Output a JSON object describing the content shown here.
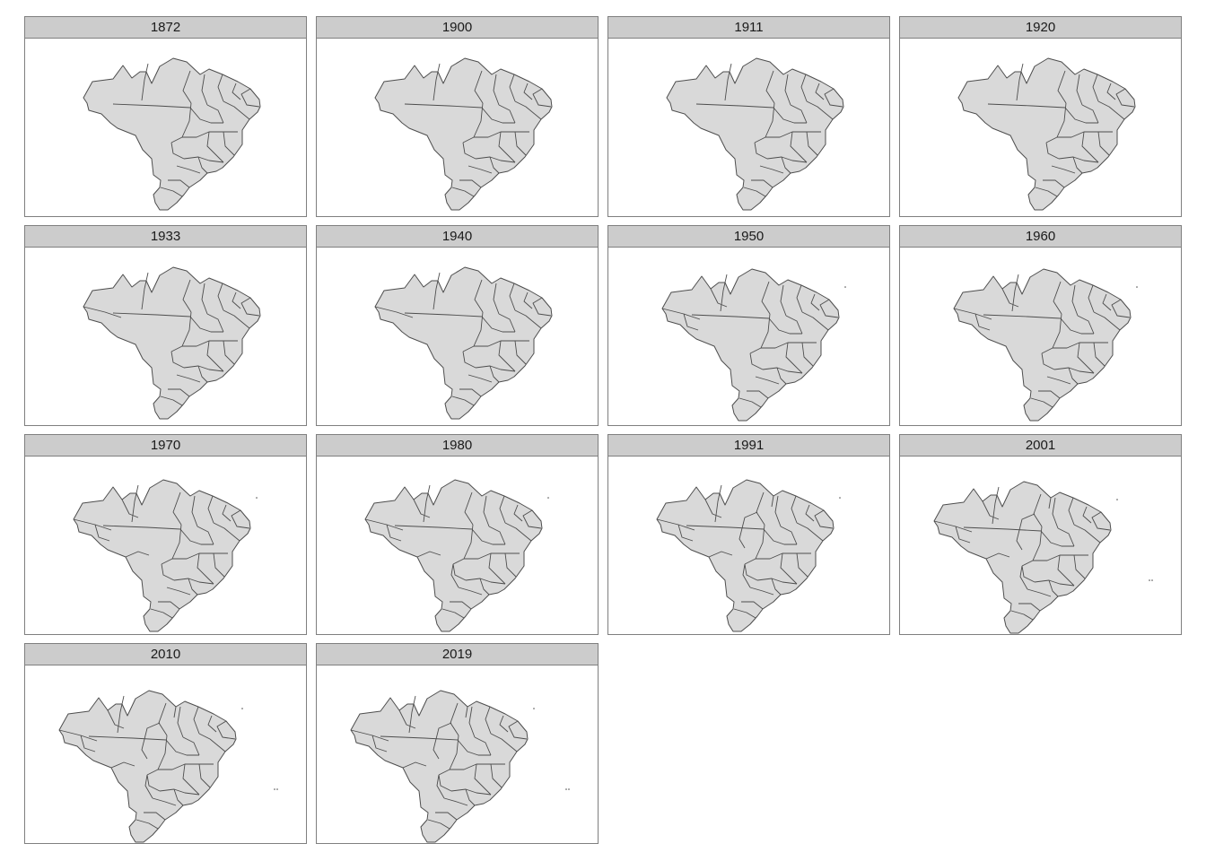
{
  "facets": [
    {
      "label": "1872",
      "era": 0,
      "offshore": []
    },
    {
      "label": "1900",
      "era": 0,
      "offshore": []
    },
    {
      "label": "1911",
      "era": 0,
      "offshore": []
    },
    {
      "label": "1920",
      "era": 0,
      "offshore": []
    },
    {
      "label": "1933",
      "era": 1,
      "offshore": []
    },
    {
      "label": "1940",
      "era": 1,
      "offshore": []
    },
    {
      "label": "1950",
      "era": 2,
      "offshore": [
        "fernando-de-noronha"
      ]
    },
    {
      "label": "1960",
      "era": 2,
      "offshore": [
        "fernando-de-noronha"
      ]
    },
    {
      "label": "1970",
      "era": 3,
      "offshore": [
        "fernando-de-noronha"
      ]
    },
    {
      "label": "1980",
      "era": 4,
      "offshore": [
        "fernando-de-noronha"
      ]
    },
    {
      "label": "1991",
      "era": 5,
      "offshore": [
        "fernando-de-noronha"
      ]
    },
    {
      "label": "2001",
      "era": 5,
      "offshore": [
        "fernando-de-noronha",
        "trindade-martim-vaz"
      ]
    },
    {
      "label": "2010",
      "era": 5,
      "offshore": [
        "fernando-de-noronha",
        "trindade-martim-vaz"
      ]
    },
    {
      "label": "2019",
      "era": 5,
      "offshore": [
        "fernando-de-noronha",
        "trindade-martim-vaz"
      ]
    }
  ],
  "colors": {
    "fill": "#d9d9d9",
    "border": "#4d4d4d",
    "strip": "#cccccc",
    "panel_border": "#7f7f7f"
  }
}
